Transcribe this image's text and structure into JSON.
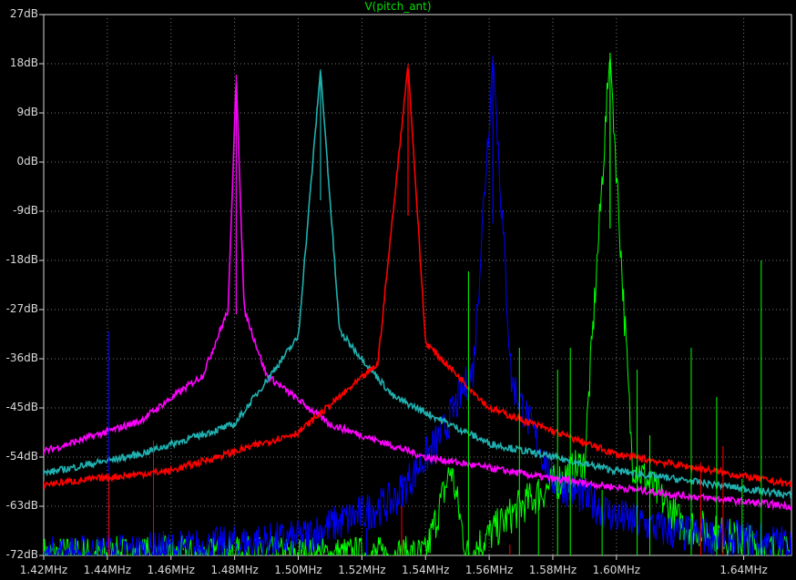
{
  "chart_data": {
    "type": "line",
    "title": "V(pitch_ant)",
    "xlabel": "",
    "ylabel": "",
    "x_unit": "MHz",
    "xlim": [
      1.42,
      1.655
    ],
    "ylim": [
      -72,
      27
    ],
    "grid": true,
    "legend": "none",
    "background": "#000000",
    "axis_color": "#d8d8d8",
    "grid_color": "#777777",
    "y_ticks": [
      27,
      18,
      9,
      0,
      -9,
      -18,
      -27,
      -36,
      -45,
      -54,
      -63,
      -72
    ],
    "y_tick_labels": [
      "27dB",
      "18dB",
      "9dB",
      "0dB",
      "-9dB",
      "-18dB",
      "-27dB",
      "-36dB",
      "-45dB",
      "-54dB",
      "-63dB",
      "-72dB"
    ],
    "x_ticks": [
      1.42,
      1.44,
      1.46,
      1.48,
      1.5,
      1.52,
      1.54,
      1.56,
      1.58,
      1.6,
      1.64
    ],
    "x_tick_labels": [
      "1.42MHz",
      "1.44MHz",
      "1.46MHz",
      "1.48MHz",
      "1.50MHz",
      "1.52MHz",
      "1.54MHz",
      "1.56MHz",
      "1.58MHz",
      "1.60MHz",
      "1.64MHz"
    ],
    "series": [
      {
        "color": "#ff00ff",
        "peak_x": 1.4805,
        "peak_y": 16,
        "x": [
          1.42,
          1.45,
          1.47,
          1.478,
          1.4805,
          1.483,
          1.49,
          1.51,
          1.54,
          1.58,
          1.62,
          1.655
        ],
        "y": [
          -53,
          -47.5,
          -39,
          -27,
          16,
          -27,
          -39,
          -48,
          -54,
          -58,
          -61,
          -63
        ]
      },
      {
        "color": "#20b0b0",
        "peak_x": 1.507,
        "peak_y": 17,
        "x": [
          1.42,
          1.45,
          1.48,
          1.5,
          1.507,
          1.513,
          1.53,
          1.56,
          1.6,
          1.655
        ],
        "y": [
          -57,
          -53.5,
          -48,
          -32,
          17,
          -31,
          -43,
          -51.5,
          -56.5,
          -61
        ]
      },
      {
        "color": "#ff0000",
        "peak_x": 1.5345,
        "peak_y": 18,
        "x": [
          1.42,
          1.46,
          1.5,
          1.525,
          1.5345,
          1.54,
          1.56,
          1.6,
          1.655
        ],
        "y": [
          -59,
          -56.5,
          -49.5,
          -37,
          18,
          -33,
          -45,
          -53.5,
          -59
        ]
      },
      {
        "color": "#0000ff",
        "peak_x": 1.5612,
        "peak_y": 19.5,
        "x": [
          1.42,
          1.46,
          1.5,
          1.53,
          1.545,
          1.555,
          1.5612,
          1.567,
          1.58,
          1.6,
          1.62,
          1.655
        ],
        "y": [
          -72,
          -71,
          -69,
          -62,
          -50,
          -38,
          19.5,
          -40,
          -58,
          -65,
          -68,
          -70
        ]
      },
      {
        "color": "#00ff00",
        "peak_x": 1.598,
        "peak_y": 20,
        "x": [
          1.42,
          1.54,
          1.548,
          1.553,
          1.57,
          1.59,
          1.598,
          1.605,
          1.62,
          1.655
        ],
        "y": [
          -72,
          -72,
          -56,
          -72,
          -63,
          -55,
          20,
          -55,
          -66,
          -72
        ]
      }
    ],
    "annotations": {
      "blue_spurs": [
        [
          1.4405,
          -31
        ],
        [
          1.5325,
          -60
        ],
        [
          1.5215,
          -67
        ]
      ],
      "green_spurs": [
        [
          1.5535,
          -20
        ],
        [
          1.5695,
          -34
        ],
        [
          1.5815,
          -38
        ],
        [
          1.5855,
          -34
        ],
        [
          1.6065,
          -38
        ],
        [
          1.6235,
          -34
        ],
        [
          1.6455,
          -18
        ],
        [
          1.6105,
          -50
        ],
        [
          1.6315,
          -43
        ],
        [
          1.6395,
          -58
        ],
        [
          1.5755,
          -58
        ],
        [
          1.5955,
          -60
        ]
      ],
      "red_spurs": [
        [
          1.4405,
          -57
        ],
        [
          1.4545,
          -51
        ],
        [
          1.5325,
          -63
        ],
        [
          1.5665,
          -70
        ],
        [
          1.6335,
          -52
        ],
        [
          1.6265,
          -55
        ]
      ]
    }
  }
}
